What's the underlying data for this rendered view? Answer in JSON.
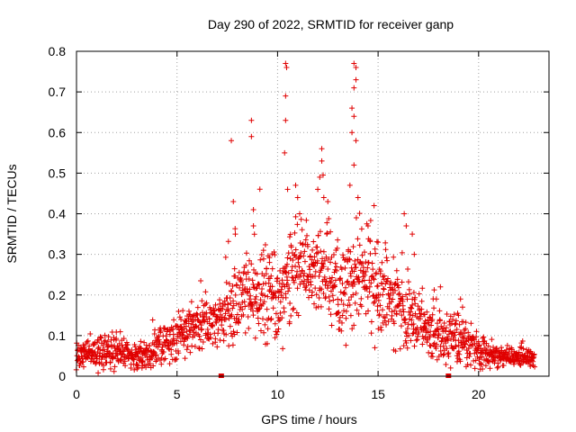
{
  "chart_data": {
    "type": "scatter",
    "title": "Day 290 of 2022, SRMTID for receiver ganp",
    "xlabel": "GPS time / hours",
    "ylabel": "SRMTID / TECUs",
    "xlim": [
      0,
      23.5
    ],
    "ylim": [
      0,
      0.8
    ],
    "x_ticks": [
      "0",
      "5",
      "10",
      "15",
      "20"
    ],
    "y_ticks": [
      "0",
      "0.1",
      "0.2",
      "0.3",
      "0.4",
      "0.5",
      "0.6",
      "0.7",
      "0.8"
    ],
    "grid": true,
    "marker": "plus",
    "color": "#e00000",
    "envelope": [
      {
        "x": 0.0,
        "base": 0.05,
        "spread": 0.02
      },
      {
        "x": 1.0,
        "base": 0.055,
        "spread": 0.03
      },
      {
        "x": 2.0,
        "base": 0.06,
        "spread": 0.03
      },
      {
        "x": 3.0,
        "base": 0.045,
        "spread": 0.025
      },
      {
        "x": 4.0,
        "base": 0.065,
        "spread": 0.03
      },
      {
        "x": 5.0,
        "base": 0.09,
        "spread": 0.04
      },
      {
        "x": 6.0,
        "base": 0.13,
        "spread": 0.04
      },
      {
        "x": 7.0,
        "base": 0.14,
        "spread": 0.05
      },
      {
        "x": 8.0,
        "base": 0.19,
        "spread": 0.09
      },
      {
        "x": 9.0,
        "base": 0.2,
        "spread": 0.08
      },
      {
        "x": 10.0,
        "base": 0.19,
        "spread": 0.09
      },
      {
        "x": 11.0,
        "base": 0.26,
        "spread": 0.09
      },
      {
        "x": 12.0,
        "base": 0.26,
        "spread": 0.1
      },
      {
        "x": 13.0,
        "base": 0.2,
        "spread": 0.08
      },
      {
        "x": 14.0,
        "base": 0.24,
        "spread": 0.1
      },
      {
        "x": 15.0,
        "base": 0.2,
        "spread": 0.09
      },
      {
        "x": 16.0,
        "base": 0.18,
        "spread": 0.08
      },
      {
        "x": 17.0,
        "base": 0.13,
        "spread": 0.06
      },
      {
        "x": 18.0,
        "base": 0.1,
        "spread": 0.05
      },
      {
        "x": 19.0,
        "base": 0.09,
        "spread": 0.05
      },
      {
        "x": 20.0,
        "base": 0.06,
        "spread": 0.03
      },
      {
        "x": 21.0,
        "base": 0.05,
        "spread": 0.02
      },
      {
        "x": 22.0,
        "base": 0.045,
        "spread": 0.02
      },
      {
        "x": 22.8,
        "base": 0.045,
        "spread": 0.02
      }
    ],
    "spikes": [
      {
        "x": 7.7,
        "y": 0.58
      },
      {
        "x": 7.8,
        "y": 0.43
      },
      {
        "x": 7.9,
        "y": 0.35
      },
      {
        "x": 8.7,
        "y": 0.63
      },
      {
        "x": 8.7,
        "y": 0.59
      },
      {
        "x": 8.8,
        "y": 0.41
      },
      {
        "x": 8.8,
        "y": 0.37
      },
      {
        "x": 9.3,
        "y": 0.31
      },
      {
        "x": 9.6,
        "y": 0.28
      },
      {
        "x": 10.4,
        "y": 0.77
      },
      {
        "x": 10.45,
        "y": 0.76
      },
      {
        "x": 10.4,
        "y": 0.69
      },
      {
        "x": 10.4,
        "y": 0.63
      },
      {
        "x": 10.35,
        "y": 0.55
      },
      {
        "x": 10.5,
        "y": 0.46
      },
      {
        "x": 10.9,
        "y": 0.47
      },
      {
        "x": 11.0,
        "y": 0.44
      },
      {
        "x": 11.1,
        "y": 0.4
      },
      {
        "x": 12.0,
        "y": 0.46
      },
      {
        "x": 12.1,
        "y": 0.49
      },
      {
        "x": 12.2,
        "y": 0.56
      },
      {
        "x": 12.2,
        "y": 0.53
      },
      {
        "x": 12.3,
        "y": 0.44
      },
      {
        "x": 12.5,
        "y": 0.43
      },
      {
        "x": 13.8,
        "y": 0.77
      },
      {
        "x": 13.9,
        "y": 0.76
      },
      {
        "x": 13.9,
        "y": 0.73
      },
      {
        "x": 13.8,
        "y": 0.71
      },
      {
        "x": 13.7,
        "y": 0.66
      },
      {
        "x": 13.8,
        "y": 0.64
      },
      {
        "x": 13.7,
        "y": 0.6
      },
      {
        "x": 13.9,
        "y": 0.58
      },
      {
        "x": 13.8,
        "y": 0.52
      },
      {
        "x": 13.6,
        "y": 0.47
      },
      {
        "x": 14.0,
        "y": 0.44
      },
      {
        "x": 14.5,
        "y": 0.37
      },
      {
        "x": 14.8,
        "y": 0.42
      },
      {
        "x": 15.0,
        "y": 0.33
      },
      {
        "x": 16.3,
        "y": 0.4
      },
      {
        "x": 16.4,
        "y": 0.37
      },
      {
        "x": 16.7,
        "y": 0.35
      },
      {
        "x": 16.8,
        "y": 0.3
      },
      {
        "x": 18.1,
        "y": 0.22
      },
      {
        "x": 19.1,
        "y": 0.19
      },
      {
        "x": 19.2,
        "y": 0.17
      },
      {
        "x": 19.0,
        "y": 0.15
      }
    ],
    "gap_markers": [
      7.2,
      18.5
    ]
  }
}
